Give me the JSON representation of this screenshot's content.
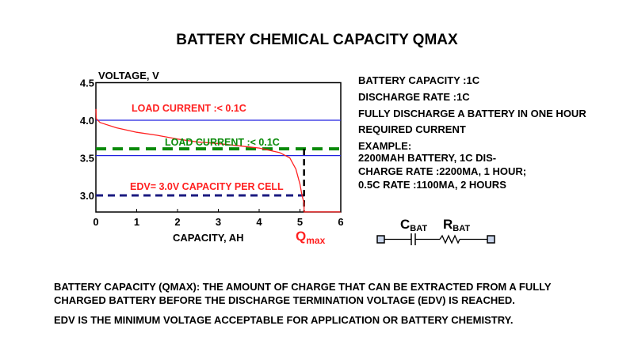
{
  "title": "BATTERY CHEMICAL CAPACITY QMAX",
  "right_text": [
    "BATTERY CAPACITY :1C",
    "DISCHARGE RATE :1C",
    "FULLY DISCHARGE A BATTERY IN ONE HOUR",
    "REQUIRED CURRENT",
    "EXAMPLE:",
    "2200MAH BATTERY, 1C DIS-",
    "CHARGE RATE :2200MA, 1 HOUR;",
    "0.5C RATE :1100MA, 2 HOURS"
  ],
  "circuit": {
    "c_label": "C",
    "c_sub": "BAT",
    "r_label": "R",
    "r_sub": "BAT"
  },
  "bottom_text": [
    "BATTERY CAPACITY (QMAX): THE AMOUNT OF CHARGE THAT CAN BE EXTRACTED FROM A FULLY",
    "CHARGED BATTERY BEFORE THE DISCHARGE TERMINATION VOLTAGE (EDV) IS REACHED.",
    "EDV IS THE MINIMUM VOLTAGE ACCEPTABLE FOR APPLICATION OR BATTERY CHEMISTRY."
  ],
  "chart_data": {
    "type": "line",
    "ylabel": "VOLTAGE, V",
    "xlabel": "CAPACITY,  AH",
    "xlim": [
      0,
      6
    ],
    "ylim": [
      2.78,
      4.5
    ],
    "xticks": [
      "0",
      "1",
      "2",
      "3",
      "4",
      "5",
      "6"
    ],
    "yticks": [
      "3.0",
      "3.5",
      "4.0",
      "4.5"
    ],
    "series": [
      {
        "color": "#ff2020",
        "x": [
          0,
          0.01,
          0.1,
          0.5,
          1,
          1.5,
          2,
          2.5,
          3,
          3.5,
          4,
          4.5,
          4.75,
          4.9,
          5.0,
          5.05,
          5.1,
          5.1,
          6
        ],
        "y": [
          4.15,
          4.02,
          3.97,
          3.9,
          3.84,
          3.8,
          3.75,
          3.71,
          3.69,
          3.66,
          3.63,
          3.57,
          3.5,
          3.35,
          3.15,
          3.0,
          2.9,
          2.78,
          2.78
        ]
      }
    ],
    "reference_lines": [
      {
        "y": 4.0,
        "color": "#2020e0",
        "style": "solid"
      },
      {
        "y": 3.53,
        "color": "#2020e0",
        "style": "solid"
      },
      {
        "y": 3.62,
        "color": "#0a8a0a",
        "style": "dashed"
      },
      {
        "y": 3.0,
        "color": "#1a1a80",
        "style": "dashed",
        "x_end": 5.1
      }
    ],
    "qmax_x": 5.1,
    "annotations": [
      {
        "text": "LOAD CURRENT :< 0.1C",
        "color": "#ff2020"
      },
      {
        "text": "LOAD CURRENT :< 0.1C",
        "color": "#0a8a0a"
      },
      {
        "text": "EDV= 3.0V CAPACITY PER CELL",
        "color": "#ff2020"
      }
    ],
    "qmax_label": "Q",
    "qmax_sub": "max"
  }
}
